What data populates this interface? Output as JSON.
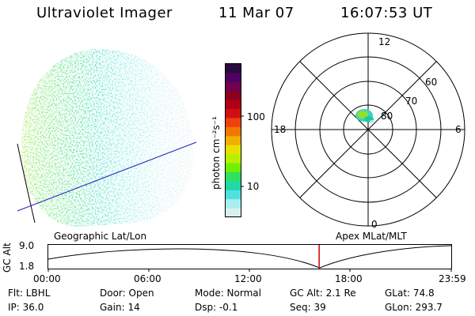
{
  "header": {
    "instrument": "Ultraviolet Imager",
    "date": "11 Mar 07",
    "time": "16:07:53 UT"
  },
  "colorbar": {
    "unit_label": "photon cm⁻²s⁻¹",
    "ticks": [
      "100",
      "10"
    ],
    "colors": [
      "#2a0a3c",
      "#500060",
      "#700050",
      "#8a0020",
      "#b00015",
      "#d01010",
      "#f04010",
      "#f07800",
      "#f0b000",
      "#e8e000",
      "#b8f000",
      "#70f000",
      "#30e060",
      "#20d8a8",
      "#50e0e0",
      "#a8f0f0",
      "#d8f0f0"
    ]
  },
  "polar_plot": {
    "labels": {
      "top": "12",
      "left": "18",
      "right": "6",
      "bottom": "0"
    },
    "lat_labels": [
      "60",
      "70",
      "80"
    ]
  },
  "timeline": {
    "ylabel": "GC Alt",
    "yticks": [
      "9.0",
      "1.8"
    ],
    "left_label": "Geographic Lat/Lon",
    "right_label": "Apex MLat/MLT",
    "xticks": [
      "00:00",
      "06:00",
      "12:00",
      "18:00",
      "23:59"
    ],
    "current_fraction": 0.6722
  },
  "info": {
    "filter": "Flt: LBHL",
    "ip": "IP: 36.0",
    "door": "Door: Open",
    "gain": "Gain: 14",
    "mode": "Mode: Normal",
    "dsp": "Dsp:    -0.1",
    "gc_alt": "GC Alt: 2.1 Re",
    "seq": "Seq: 39",
    "glat": "GLat:  74.8",
    "glon": "GLon: 293.7"
  }
}
